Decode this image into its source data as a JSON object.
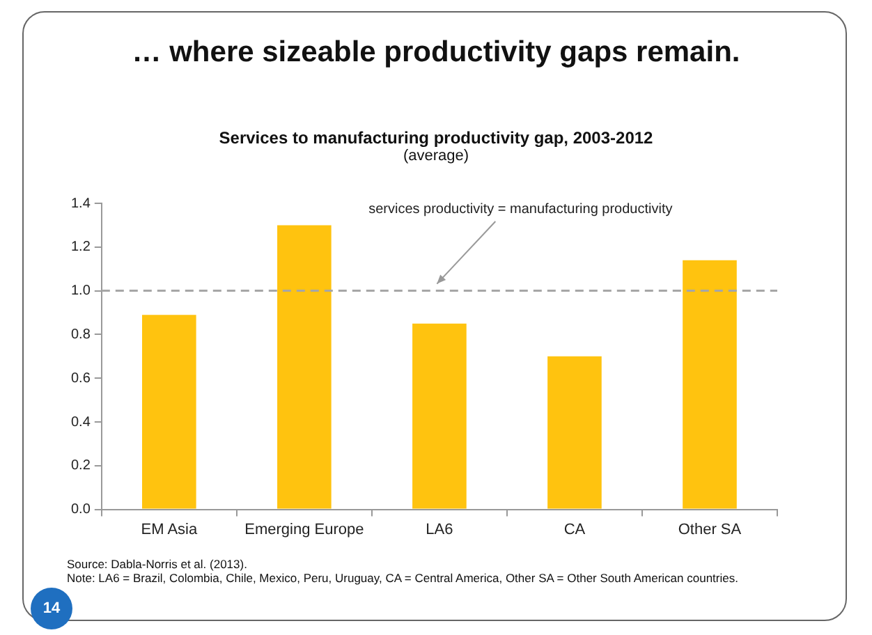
{
  "chart_data": {
    "type": "bar",
    "title": "… where sizeable productivity gaps remain.",
    "subtitle": "Services to manufacturing productivity gap, 2003-2012",
    "categories": [
      "EM Asia",
      "Emerging Europe",
      "LA6",
      "CA",
      "Other SA"
    ],
    "values": [
      0.89,
      1.3,
      0.85,
      0.7,
      1.14
    ],
    "color": "#ffc30f",
    "ylim": [
      0,
      1.4
    ],
    "yticks": [
      {
        "value": 0,
        "label": "0.0"
      },
      {
        "value": 0.2,
        "label": "0.2"
      },
      {
        "value": 0.4,
        "label": "0.4"
      },
      {
        "value": 0.6,
        "label": "0.6"
      },
      {
        "value": 0.8,
        "label": "0.8"
      },
      {
        "value": 1,
        "label": "1.0"
      },
      {
        "value": 1.2,
        "label": "1.2"
      },
      {
        "value": 1.4,
        "label": "1.4"
      }
    ],
    "grid": false,
    "legend": false,
    "ref_lines": [
      {
        "axis": "y",
        "value": 1,
        "label": "services productivity = manufacturing productivity",
        "color": "#a6a6a6",
        "line_style": "dashed"
      }
    ],
    "annotations": [
      "(average)",
      "Source: Dabla-Norris et al. (2013).",
      "Note: LA6 = Brazil, Colombia, Chile, Mexico, Peru, Uruguay, CA = Central America, Other SA = Other South American countries.",
      "14"
    ]
  }
}
